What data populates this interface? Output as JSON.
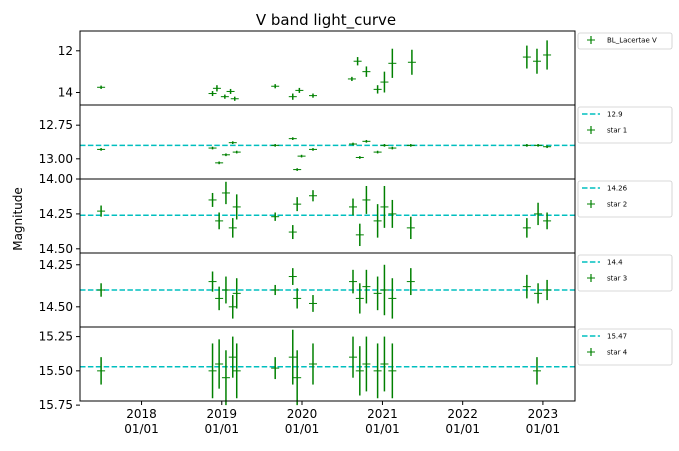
{
  "chart_data": {
    "type": "scatter",
    "title": "V band light_curve",
    "ylabel": "Magnitude",
    "xlabel": "",
    "x_axis": {
      "range": [
        "2017-03-27",
        "2023-05-27"
      ],
      "ticks": [
        {
          "line1": "2018",
          "line2": "01/01",
          "date": "2018-01-01"
        },
        {
          "line1": "2019",
          "line2": "01/01",
          "date": "2019-01-01"
        },
        {
          "line1": "2020",
          "line2": "01/01",
          "date": "2020-01-01"
        },
        {
          "line1": "2021",
          "line2": "01/01",
          "date": "2021-01-01"
        },
        {
          "line1": "2022",
          "line2": "01/01",
          "date": "2022-01-01"
        },
        {
          "line1": "2023",
          "line2": "01/01",
          "date": "2023-01-01"
        }
      ]
    },
    "marker_color": "#008000",
    "reference_line_color": "#00bfbf",
    "panels": [
      {
        "key": "bl_lac",
        "series_name": "BL_Lacertae V",
        "ylim_inverted": [
          14.6,
          11.05
        ],
        "yticks": [
          {
            "value": 12,
            "label": "12"
          },
          {
            "value": 14,
            "label": "14"
          }
        ],
        "reference": null,
        "observations": [
          {
            "date": "2017-07-01",
            "mag": 13.75,
            "err": 0.08
          },
          {
            "date": "2018-11-20",
            "mag": 14.05,
            "err": 0.12
          },
          {
            "date": "2018-12-10",
            "mag": 13.8,
            "err": 0.15
          },
          {
            "date": "2019-01-15",
            "mag": 14.2,
            "err": 0.1
          },
          {
            "date": "2019-02-10",
            "mag": 13.95,
            "err": 0.12
          },
          {
            "date": "2019-03-01",
            "mag": 14.3,
            "err": 0.1
          },
          {
            "date": "2019-09-01",
            "mag": 13.7,
            "err": 0.1
          },
          {
            "date": "2019-11-20",
            "mag": 14.2,
            "err": 0.15
          },
          {
            "date": "2019-12-20",
            "mag": 13.9,
            "err": 0.12
          },
          {
            "date": "2020-02-20",
            "mag": 14.15,
            "err": 0.1
          },
          {
            "date": "2020-08-15",
            "mag": 13.35,
            "err": 0.1
          },
          {
            "date": "2020-09-10",
            "mag": 12.5,
            "err": 0.2
          },
          {
            "date": "2020-10-20",
            "mag": 13.0,
            "err": 0.25
          },
          {
            "date": "2020-12-10",
            "mag": 13.85,
            "err": 0.2
          },
          {
            "date": "2021-01-10",
            "mag": 13.5,
            "err": 0.5
          },
          {
            "date": "2021-02-15",
            "mag": 12.6,
            "err": 0.7
          },
          {
            "date": "2021-05-15",
            "mag": 12.55,
            "err": 0.6
          },
          {
            "date": "2022-10-20",
            "mag": 12.3,
            "err": 0.55
          },
          {
            "date": "2022-12-05",
            "mag": 12.5,
            "err": 0.6
          },
          {
            "date": "2023-01-20",
            "mag": 12.2,
            "err": 0.7
          }
        ]
      },
      {
        "key": "star1",
        "series_name": "star 1",
        "ylim_inverted": [
          13.15,
          12.6
        ],
        "yticks": [
          {
            "value": 12.75,
            "label": "12.75"
          },
          {
            "value": 13.0,
            "label": "13.00"
          }
        ],
        "reference": {
          "value": 12.9,
          "label": "12.9"
        },
        "observations": [
          {
            "date": "2017-07-01",
            "mag": 12.93,
            "err": 0.01
          },
          {
            "date": "2018-11-20",
            "mag": 12.92,
            "err": 0.01
          },
          {
            "date": "2018-12-20",
            "mag": 13.03,
            "err": 0.01
          },
          {
            "date": "2019-01-20",
            "mag": 12.97,
            "err": 0.01
          },
          {
            "date": "2019-02-20",
            "mag": 12.88,
            "err": 0.01
          },
          {
            "date": "2019-03-10",
            "mag": 12.95,
            "err": 0.01
          },
          {
            "date": "2019-09-01",
            "mag": 12.9,
            "err": 0.01
          },
          {
            "date": "2019-11-20",
            "mag": 12.85,
            "err": 0.01
          },
          {
            "date": "2019-12-10",
            "mag": 13.08,
            "err": 0.01
          },
          {
            "date": "2019-12-30",
            "mag": 12.98,
            "err": 0.01
          },
          {
            "date": "2020-02-20",
            "mag": 12.93,
            "err": 0.01
          },
          {
            "date": "2020-08-20",
            "mag": 12.89,
            "err": 0.01
          },
          {
            "date": "2020-09-20",
            "mag": 12.99,
            "err": 0.01
          },
          {
            "date": "2020-10-20",
            "mag": 12.87,
            "err": 0.01
          },
          {
            "date": "2020-12-10",
            "mag": 12.95,
            "err": 0.01
          },
          {
            "date": "2021-01-10",
            "mag": 12.9,
            "err": 0.01
          },
          {
            "date": "2021-02-15",
            "mag": 12.92,
            "err": 0.01
          },
          {
            "date": "2021-05-10",
            "mag": 12.9,
            "err": 0.01
          },
          {
            "date": "2022-10-20",
            "mag": 12.9,
            "err": 0.01
          },
          {
            "date": "2022-12-10",
            "mag": 12.9,
            "err": 0.01
          },
          {
            "date": "2023-01-20",
            "mag": 12.91,
            "err": 0.01
          }
        ]
      },
      {
        "key": "star2",
        "series_name": "star 2",
        "ylim_inverted": [
          14.53,
          14.0
        ],
        "yticks": [
          {
            "value": 14.0,
            "label": "14.00"
          },
          {
            "value": 14.25,
            "label": "14.25"
          },
          {
            "value": 14.5,
            "label": "14.50"
          }
        ],
        "reference": {
          "value": 14.26,
          "label": "14.26"
        },
        "observations": [
          {
            "date": "2017-07-01",
            "mag": 14.23,
            "err": 0.04
          },
          {
            "date": "2018-11-20",
            "mag": 14.15,
            "err": 0.05
          },
          {
            "date": "2018-12-20",
            "mag": 14.3,
            "err": 0.06
          },
          {
            "date": "2019-01-20",
            "mag": 14.1,
            "err": 0.08
          },
          {
            "date": "2019-02-20",
            "mag": 14.35,
            "err": 0.07
          },
          {
            "date": "2019-03-10",
            "mag": 14.2,
            "err": 0.09
          },
          {
            "date": "2019-09-01",
            "mag": 14.27,
            "err": 0.03
          },
          {
            "date": "2019-11-20",
            "mag": 14.38,
            "err": 0.05
          },
          {
            "date": "2019-12-10",
            "mag": 14.18,
            "err": 0.05
          },
          {
            "date": "2020-02-20",
            "mag": 14.12,
            "err": 0.04
          },
          {
            "date": "2020-08-20",
            "mag": 14.2,
            "err": 0.06
          },
          {
            "date": "2020-09-20",
            "mag": 14.4,
            "err": 0.08
          },
          {
            "date": "2020-10-20",
            "mag": 14.15,
            "err": 0.1
          },
          {
            "date": "2020-12-10",
            "mag": 14.3,
            "err": 0.12
          },
          {
            "date": "2021-01-10",
            "mag": 14.2,
            "err": 0.15
          },
          {
            "date": "2021-02-15",
            "mag": 14.25,
            "err": 0.1
          },
          {
            "date": "2021-05-10",
            "mag": 14.35,
            "err": 0.08
          },
          {
            "date": "2022-10-20",
            "mag": 14.35,
            "err": 0.07
          },
          {
            "date": "2022-12-10",
            "mag": 14.25,
            "err": 0.08
          },
          {
            "date": "2023-01-20",
            "mag": 14.3,
            "err": 0.06
          }
        ]
      },
      {
        "key": "star3",
        "series_name": "star 3",
        "ylim_inverted": [
          14.62,
          14.18
        ],
        "yticks": [
          {
            "value": 14.25,
            "label": "14.25"
          },
          {
            "value": 14.5,
            "label": "14.50"
          }
        ],
        "reference": {
          "value": 14.4,
          "label": "14.4"
        },
        "observations": [
          {
            "date": "2017-07-01",
            "mag": 14.4,
            "err": 0.04
          },
          {
            "date": "2018-11-20",
            "mag": 14.35,
            "err": 0.06
          },
          {
            "date": "2018-12-20",
            "mag": 14.45,
            "err": 0.07
          },
          {
            "date": "2019-01-20",
            "mag": 14.4,
            "err": 0.08
          },
          {
            "date": "2019-02-20",
            "mag": 14.5,
            "err": 0.07
          },
          {
            "date": "2019-03-10",
            "mag": 14.42,
            "err": 0.09
          },
          {
            "date": "2019-09-01",
            "mag": 14.4,
            "err": 0.03
          },
          {
            "date": "2019-11-20",
            "mag": 14.32,
            "err": 0.05
          },
          {
            "date": "2019-12-10",
            "mag": 14.45,
            "err": 0.06
          },
          {
            "date": "2020-02-20",
            "mag": 14.48,
            "err": 0.05
          },
          {
            "date": "2020-08-20",
            "mag": 14.35,
            "err": 0.07
          },
          {
            "date": "2020-09-20",
            "mag": 14.45,
            "err": 0.09
          },
          {
            "date": "2020-10-20",
            "mag": 14.38,
            "err": 0.1
          },
          {
            "date": "2020-12-10",
            "mag": 14.42,
            "err": 0.1
          },
          {
            "date": "2021-01-10",
            "mag": 14.4,
            "err": 0.15
          },
          {
            "date": "2021-02-15",
            "mag": 14.45,
            "err": 0.12
          },
          {
            "date": "2021-05-10",
            "mag": 14.35,
            "err": 0.08
          },
          {
            "date": "2022-10-20",
            "mag": 14.38,
            "err": 0.07
          },
          {
            "date": "2022-12-10",
            "mag": 14.42,
            "err": 0.06
          },
          {
            "date": "2023-01-20",
            "mag": 14.4,
            "err": 0.06
          }
        ]
      },
      {
        "key": "star4",
        "series_name": "star 4",
        "ylim_inverted": [
          15.72,
          15.18
        ],
        "yticks": [
          {
            "value": 15.25,
            "label": "15.25"
          },
          {
            "value": 15.5,
            "label": "15.50"
          },
          {
            "value": 15.75,
            "label": "15.75"
          }
        ],
        "reference": {
          "value": 15.47,
          "label": "15.47"
        },
        "observations": [
          {
            "date": "2017-07-01",
            "mag": 15.5,
            "err": 0.1
          },
          {
            "date": "2018-11-20",
            "mag": 15.5,
            "err": 0.2
          },
          {
            "date": "2018-12-20",
            "mag": 15.45,
            "err": 0.18
          },
          {
            "date": "2019-01-20",
            "mag": 15.55,
            "err": 0.2
          },
          {
            "date": "2019-02-20",
            "mag": 15.4,
            "err": 0.15
          },
          {
            "date": "2019-03-10",
            "mag": 15.5,
            "err": 0.2
          },
          {
            "date": "2019-09-01",
            "mag": 15.48,
            "err": 0.08
          },
          {
            "date": "2019-11-20",
            "mag": 15.4,
            "err": 0.2
          },
          {
            "date": "2019-12-10",
            "mag": 15.55,
            "err": 0.2
          },
          {
            "date": "2020-02-20",
            "mag": 15.45,
            "err": 0.15
          },
          {
            "date": "2020-08-20",
            "mag": 15.4,
            "err": 0.15
          },
          {
            "date": "2020-09-20",
            "mag": 15.5,
            "err": 0.18
          },
          {
            "date": "2020-10-20",
            "mag": 15.45,
            "err": 0.2
          },
          {
            "date": "2020-12-10",
            "mag": 15.5,
            "err": 0.2
          },
          {
            "date": "2021-01-10",
            "mag": 15.45,
            "err": 0.2
          },
          {
            "date": "2021-02-15",
            "mag": 15.5,
            "err": 0.2
          },
          {
            "date": "2022-12-05",
            "mag": 15.5,
            "err": 0.1
          }
        ]
      }
    ]
  }
}
